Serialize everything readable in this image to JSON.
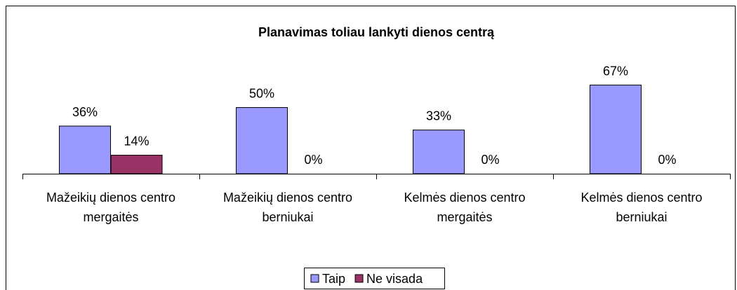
{
  "chart_data": {
    "type": "bar",
    "title": "Planavimas toliau lankyti dienos centrą",
    "categories": [
      "Mažeikių dienos centro mergaitės",
      "Mažeikių dienos centro berniukai",
      "Kelmės dienos centro mergaitės",
      "Kelmės dienos centro berniukai"
    ],
    "series": [
      {
        "name": "Taip",
        "color": "#9999ff",
        "values": [
          36,
          50,
          33,
          67
        ],
        "value_labels": [
          "36%",
          "50%",
          "33%",
          "67%"
        ]
      },
      {
        "name": "Ne visada",
        "color": "#993366",
        "values": [
          14,
          0,
          0,
          0
        ],
        "value_labels": [
          "14%",
          "0%",
          "0%",
          "0%"
        ]
      }
    ],
    "legend": "bottom"
  }
}
